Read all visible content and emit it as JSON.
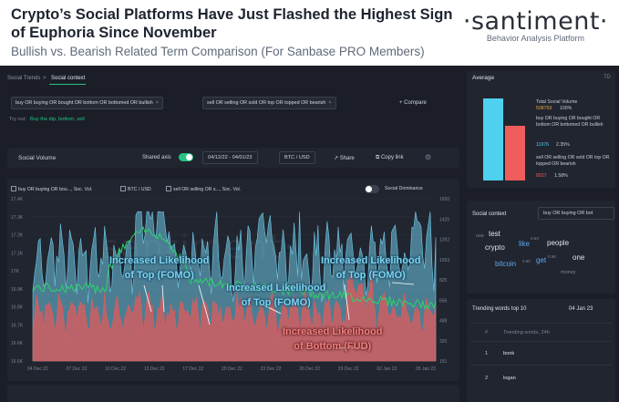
{
  "header": {
    "title": "Crypto’s Social Platforms Have Just Flashed the Highest Sign of Euphoria Since November",
    "subtitle": "Bullish vs. Bearish Related Term Comparison (For Sanbase PRO Members)",
    "brand": "·santiment·",
    "brand_tagline": "Behavior Analysis Platform"
  },
  "tabs": {
    "social_trends": "Social Trends",
    "separator": ">",
    "social_context": "Social context"
  },
  "queries": {
    "bullish": "buy OR buying OR bought OR bottom OR bottomed OR bullish",
    "bearish": "sell OR selling OR sold OR top OR topped OR bearish",
    "remove_icon": "×",
    "compare_label": "+ Compare",
    "try_out_prefix": "Try out:",
    "try_out_links": "Buy the dip, bottom, sell"
  },
  "toolbar": {
    "title": "Social Volume",
    "shared_axis_label": "Shared axis",
    "date_range": "04/12/22 - 04/01/23",
    "pair": "BTC / USD",
    "share": "Share",
    "copy_link": "Copy link"
  },
  "legend": {
    "bullish": "buy OR buying OR bou..., Soc. Vol.",
    "btc": "BTC / USD",
    "bearish": "sell OR selling OR s..., Soc. Vol.",
    "dominance": "Social Dominance"
  },
  "annotations": {
    "top1": [
      "Increased Likelihood",
      "of Top (FOMO)"
    ],
    "top2": [
      "Increased Likelihood",
      "of Top (FOMO)"
    ],
    "top3": [
      "Increased Likelihood",
      "of Top (FOMO)"
    ],
    "bottom": [
      "Increased Likelihood",
      "of Bottom (FUD)"
    ]
  },
  "chart_data": {
    "type": "area",
    "y_left_ticks": [
      "16.5K",
      "16.6K",
      "16.7K",
      "16.8K",
      "16.9K",
      "17K",
      "17.1K",
      "17.2K",
      "17.3K",
      "17.4K"
    ],
    "y_right_ticks": [
      "1650",
      "1420",
      "1262",
      "1093",
      "825",
      "656",
      "488",
      "320",
      "151"
    ],
    "x_ticks": [
      "04 Dec 22",
      "07 Dec 22",
      "10 Dec 22",
      "13 Dec 22",
      "17 Dec 22",
      "20 Dec 22",
      "23 Dec 22",
      "26 Dec 22",
      "29 Dec 22",
      "02 Jan 23",
      "05 Jan 23"
    ],
    "colors": {
      "bullish": "#6fc8e6",
      "bearish": "#e25b5b",
      "btc": "#2ed36a"
    }
  },
  "average": {
    "title": "Average",
    "period": "7D",
    "total_label": "Total Social Volume",
    "total_value": "508759",
    "total_pct": "100%",
    "bull_label": "buy OR buying OR bought OR bottom OR bottomed OR bullish",
    "bull_value": "11976",
    "bull_pct": "2.35%",
    "bear_label": "sell OR selling OR sold OR top OR topped OR bearish",
    "bear_value": "8027",
    "bear_pct": "1.58%",
    "bar_colors": {
      "bull": "#4fd0ef",
      "bear": "#f05d5d"
    },
    "bar_levels": {
      "bull": 1.0,
      "bear": 0.67
    }
  },
  "context": {
    "title": "Social context",
    "query": "buy OR buying OR bot",
    "words": [
      "use",
      "test",
      "like",
      "people",
      "crypto",
      "0.63",
      "one",
      "bitcoin",
      "0.60",
      "get",
      "0.56",
      "money"
    ]
  },
  "trending": {
    "title": "Trending words top 10",
    "date": "04 Jan 23",
    "col_num": "#",
    "col_words": "Trending words, 24h",
    "rows": [
      {
        "n": "1",
        "word": "bonk"
      },
      {
        "n": "2",
        "word": "logan"
      }
    ]
  }
}
